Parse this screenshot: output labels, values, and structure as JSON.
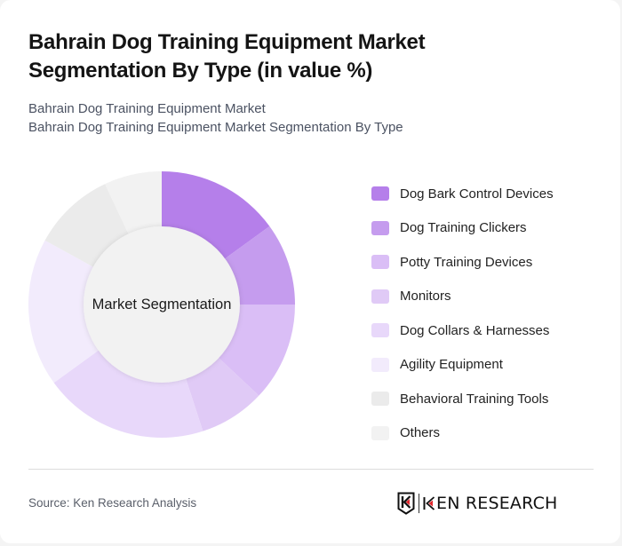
{
  "header": {
    "title": "Bahrain Dog Training Equipment Market Segmentation By Type (in value %)",
    "subtitle_line1": "Bahrain Dog Training Equipment Market",
    "subtitle_line2": "Bahrain Dog Training Equipment Market Segmentation By Type"
  },
  "chart": {
    "center_label": "Market Segmentation"
  },
  "legend": {
    "items": [
      {
        "label": "Dog Bark Control Devices",
        "color": "#B57FEA"
      },
      {
        "label": "Dog Training Clickers",
        "color": "#C59CEE"
      },
      {
        "label": "Potty Training Devices",
        "color": "#DABEF6"
      },
      {
        "label": "Monitors",
        "color": "#E0CAF6"
      },
      {
        "label": "Dog Collars & Harnesses",
        "color": "#E8D8FA"
      },
      {
        "label": "Agility Equipment",
        "color": "#F2EBFC"
      },
      {
        "label": "Behavioral Training Tools",
        "color": "#EBEBEB"
      },
      {
        "label": "Others",
        "color": "#F2F2F2"
      }
    ]
  },
  "footer": {
    "source": "Source: Ken Research Analysis",
    "logo_text": "KEN RESEARCH"
  },
  "chart_data": {
    "type": "pie",
    "subtype": "donut",
    "title": "Bahrain Dog Training Equipment Market Segmentation By Type (in value %)",
    "subtitle": "Bahrain Dog Training Equipment Market Segmentation By Type",
    "center_label": "Market Segmentation",
    "categories": [
      "Dog Bark Control Devices",
      "Dog Training Clickers",
      "Potty Training Devices",
      "Monitors",
      "Dog Collars & Harnesses",
      "Agility Equipment",
      "Behavioral Training Tools",
      "Others"
    ],
    "values": [
      15,
      10,
      12,
      8,
      20,
      18,
      10,
      7
    ],
    "colors": [
      "#B57FEA",
      "#C59CEE",
      "#DABEF6",
      "#E0CAF6",
      "#E8D8FA",
      "#F2EBFC",
      "#EBEBEB",
      "#F2F2F2"
    ],
    "unit": "%",
    "start_angle": "12 o'clock, clockwise",
    "legend_position": "right",
    "data_labels": false
  }
}
